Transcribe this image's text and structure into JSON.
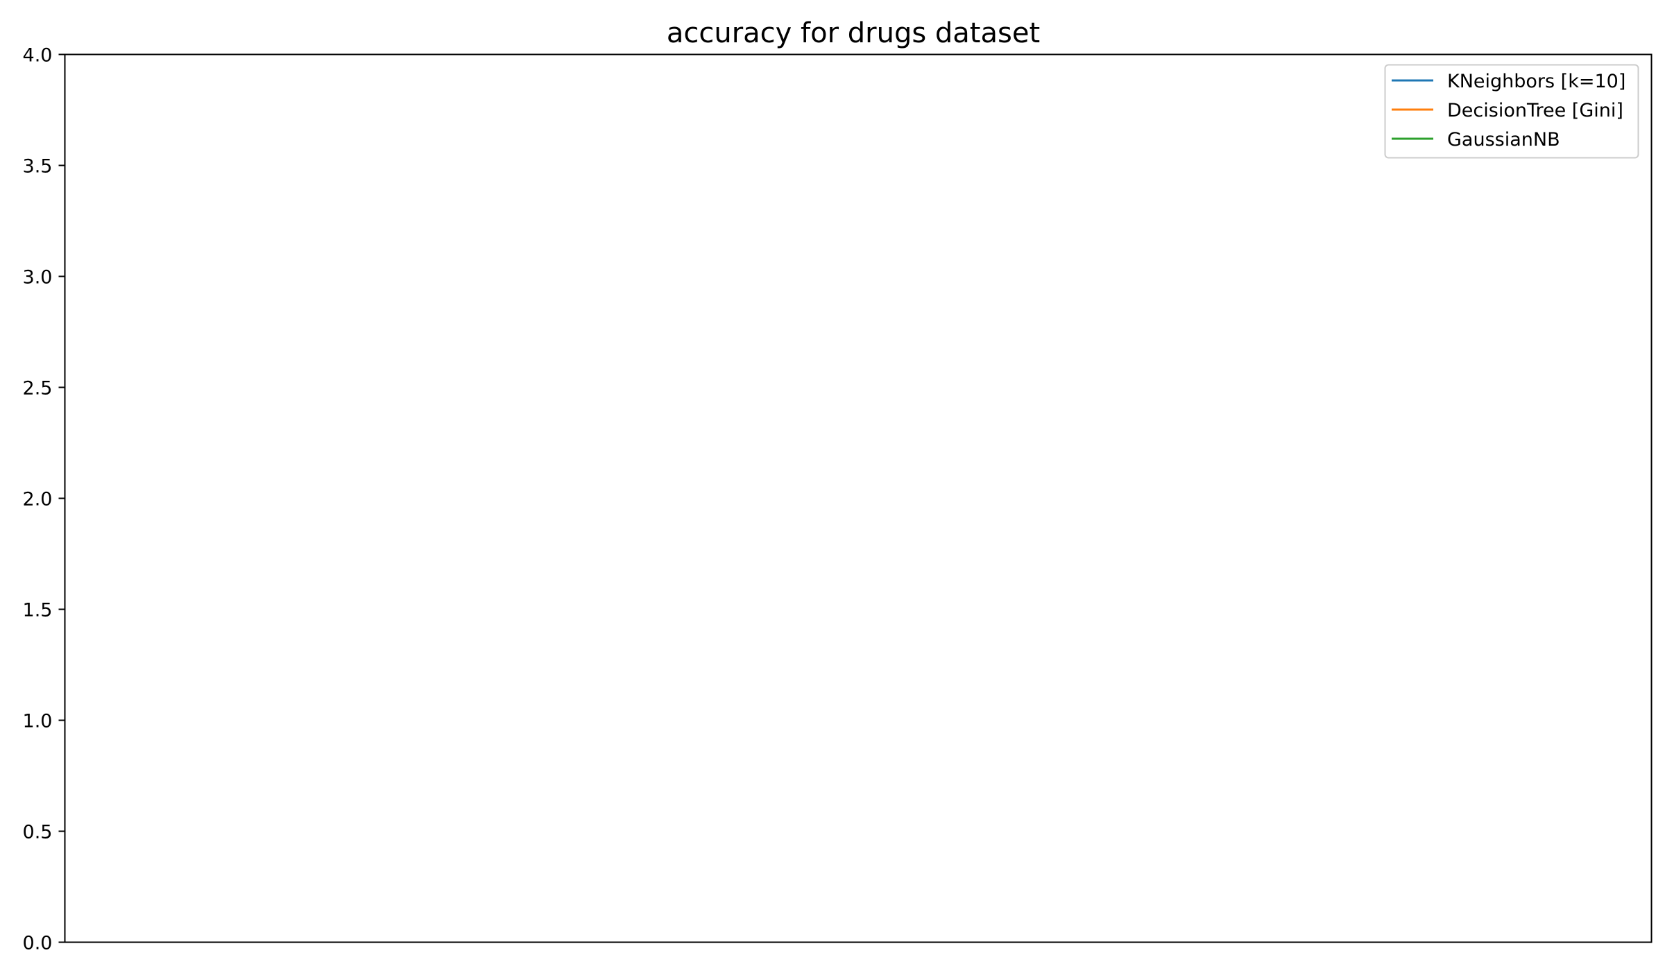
{
  "chart_data": {
    "type": "line",
    "title": "accuracy for drugs dataset",
    "xlabel": "",
    "ylabel": "",
    "ylim": [
      0.0,
      4.0
    ],
    "yticks": [
      "0.0",
      "0.5",
      "1.0",
      "1.5",
      "2.0",
      "2.5",
      "3.0",
      "3.5",
      "4.0"
    ],
    "xticks": [],
    "grid": false,
    "legend_position": "top-right",
    "series": [
      {
        "name": "KNeighbors [k=10]",
        "color": "#1f77b4",
        "values": []
      },
      {
        "name": "DecisionTree [Gini]",
        "color": "#ff7f0e",
        "values": []
      },
      {
        "name": "GaussianNB",
        "color": "#2ca02c",
        "values": []
      }
    ]
  }
}
